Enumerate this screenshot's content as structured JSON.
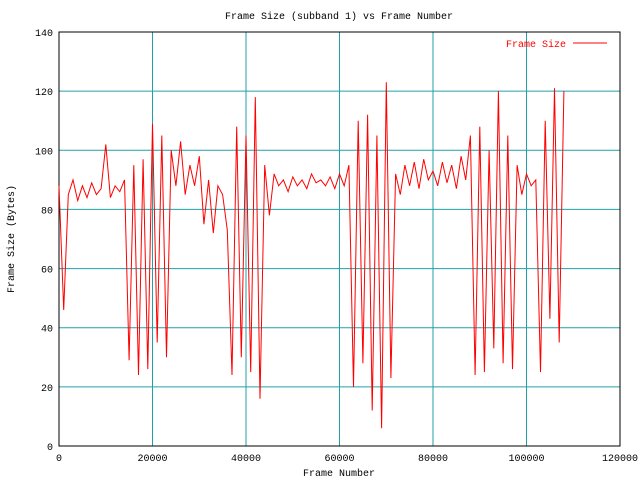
{
  "chart_data": {
    "type": "line",
    "title": "Frame Size (subband 1) vs Frame Number",
    "x_label": "Frame Number",
    "y_label": "Frame Size (Bytes)",
    "xlim": [
      0,
      120000
    ],
    "xticks": [
      0,
      20000,
      40000,
      60000,
      80000,
      100000,
      120000
    ],
    "ylim": [
      0,
      140
    ],
    "yticks": [
      0,
      20,
      40,
      60,
      80,
      100,
      120,
      140
    ],
    "grid": true,
    "grid_color": "#20a0a8",
    "legend": "upper right",
    "x": [
      0,
      1000,
      2000,
      3000,
      4000,
      5000,
      6000,
      7000,
      8000,
      9000,
      10000,
      11000,
      12000,
      13000,
      14000,
      15000,
      16000,
      17000,
      18000,
      19000,
      20000,
      21000,
      22000,
      23000,
      24000,
      25000,
      26000,
      27000,
      28000,
      29000,
      30000,
      31000,
      32000,
      33000,
      34000,
      35000,
      36000,
      37000,
      38000,
      39000,
      40000,
      41000,
      42000,
      43000,
      44000,
      45000,
      46000,
      47000,
      48000,
      49000,
      50000,
      51000,
      52000,
      53000,
      54000,
      55000,
      56000,
      57000,
      58000,
      59000,
      60000,
      61000,
      62000,
      63000,
      64000,
      65000,
      66000,
      67000,
      68000,
      69000,
      70000,
      71000,
      72000,
      73000,
      74000,
      75000,
      76000,
      77000,
      78000,
      79000,
      80000,
      81000,
      82000,
      83000,
      84000,
      85000,
      86000,
      87000,
      88000,
      89000,
      90000,
      91000,
      92000,
      93000,
      94000,
      95000,
      96000,
      97000,
      98000,
      99000,
      100000,
      101000,
      102000,
      103000,
      104000,
      105000,
      106000,
      107000,
      108000
    ],
    "series": [
      {
        "name": "Frame Size",
        "color": "#ff0000",
        "values": [
          88,
          46,
          85,
          90,
          83,
          88,
          84,
          89,
          85,
          87,
          102,
          84,
          88,
          86,
          90,
          29,
          95,
          24,
          97,
          26,
          109,
          35,
          105,
          30,
          100,
          88,
          103,
          85,
          95,
          88,
          98,
          75,
          90,
          72,
          88,
          85,
          73,
          24,
          108,
          30,
          105,
          25,
          118,
          16,
          95,
          78,
          92,
          88,
          90,
          86,
          91,
          88,
          90,
          87,
          92,
          89,
          90,
          88,
          91,
          87,
          92,
          88,
          95,
          20,
          110,
          28,
          112,
          12,
          105,
          6,
          123,
          23,
          92,
          85,
          95,
          88,
          96,
          87,
          97,
          90,
          93,
          88,
          96,
          89,
          95,
          87,
          98,
          90,
          105,
          24,
          108,
          25,
          100,
          33,
          120,
          28,
          105,
          26,
          95,
          85,
          92,
          88,
          90,
          25,
          110,
          43,
          121,
          35,
          120
        ]
      }
    ]
  }
}
